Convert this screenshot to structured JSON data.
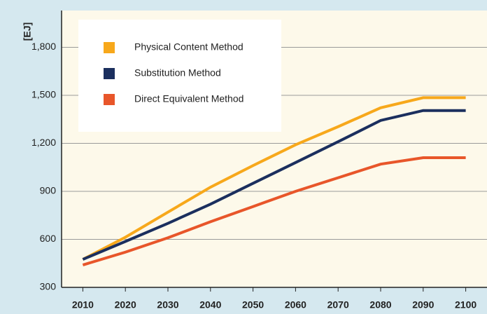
{
  "chart_data": {
    "type": "line",
    "y_label": "[EJ]",
    "x": [
      2010,
      2020,
      2030,
      2040,
      2050,
      2060,
      2070,
      2080,
      2090,
      2100
    ],
    "series": [
      {
        "name": "Physical Content Method",
        "color": "#f7a81b",
        "values": [
          475,
          613,
          770,
          926,
          1061,
          1191,
          1304,
          1422,
          1485,
          1485
        ]
      },
      {
        "name": "Substitution Method",
        "color": "#1b2f5e",
        "values": [
          475,
          587,
          700,
          820,
          950,
          1080,
          1210,
          1343,
          1405,
          1405
        ]
      },
      {
        "name": "Direct Equivalent Method",
        "color": "#e8562a",
        "values": [
          440,
          520,
          610,
          710,
          805,
          900,
          985,
          1070,
          1110,
          1110
        ]
      }
    ],
    "xlim": [
      2005,
      2105
    ],
    "xticks": [
      2010,
      2020,
      2030,
      2040,
      2050,
      2060,
      2070,
      2080,
      2090,
      2100
    ],
    "ylim": [
      300,
      2030
    ],
    "yticks": [
      300,
      600,
      900,
      {
        "value": 1200,
        "label": "1,200"
      },
      {
        "value": 1500,
        "label": "1,500"
      },
      {
        "value": 1800,
        "label": "1,800"
      }
    ],
    "grid": true,
    "legend": "upper left"
  }
}
